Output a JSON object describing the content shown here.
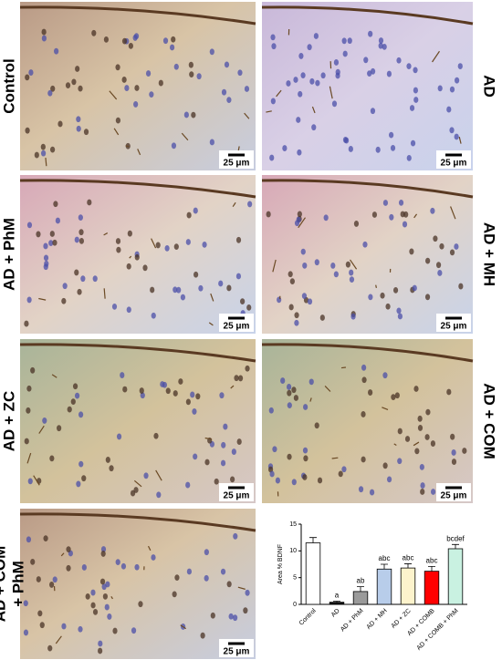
{
  "panels": [
    {
      "label": [
        "Control"
      ],
      "side": "left"
    },
    {
      "label": [
        "AD"
      ],
      "side": "right"
    },
    {
      "label": [
        "AD + PhM"
      ],
      "side": "left"
    },
    {
      "label": [
        "AD + MH"
      ],
      "side": "right"
    },
    {
      "label": [
        "AD + ZC"
      ],
      "side": "left"
    },
    {
      "label": [
        "AD + COM"
      ],
      "side": "right"
    },
    {
      "label": [
        "AD + COM",
        "+ PhM"
      ],
      "side": "left"
    }
  ],
  "scale_bar": "25 μm",
  "chart_data": {
    "type": "bar",
    "y_label": "Area % BDNF",
    "categories": [
      "Control",
      "AD",
      "AD + PhM",
      "AD + MH",
      "AD + ZC",
      "AD + COMB",
      "AD + COMB + PhM"
    ],
    "values": [
      11.5,
      0.4,
      2.4,
      6.6,
      6.8,
      6.2,
      10.4
    ],
    "errors": [
      1.0,
      0.2,
      0.9,
      0.9,
      0.8,
      0.9,
      0.8
    ],
    "value_labels": [
      null,
      "a",
      "ab",
      "abc",
      "abc",
      "abc",
      "bcdef"
    ],
    "colors": [
      "#ffffff",
      "#111111",
      "#9a9a9a",
      "#b8cdea",
      "#fdf3cc",
      "#ff0000",
      "#c9f1e1"
    ],
    "ylim": [
      0,
      15
    ],
    "yticks": [
      0,
      5,
      10,
      15
    ]
  }
}
